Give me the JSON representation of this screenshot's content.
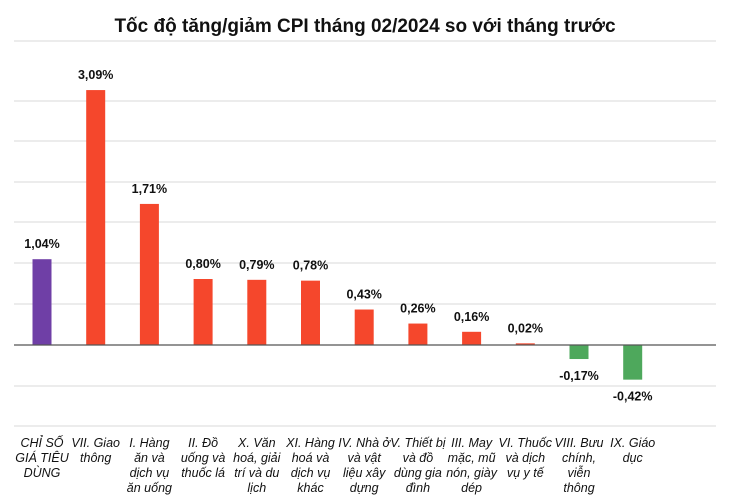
{
  "chart_data": {
    "type": "bar",
    "title": "Tốc độ tăng/giảm CPI tháng 02/2024 so với tháng trước",
    "categories": [
      "CHỈ SỐ GIÁ TIÊU DÙNG",
      "VII. Giao thông",
      "I. Hàng ăn và dịch vụ ăn uống",
      "II. Đồ uống và thuốc lá",
      "X. Văn hoá, giải trí và du lịch",
      "XI. Hàng hoá và dịch vụ khác",
      "IV. Nhà ở và vật liệu xây dựng",
      "V. Thiết bị và đồ dùng gia đình",
      "III. May mặc, mũ nón, giày dép",
      "VI. Thuốc và dịch vụ y tế",
      "VIII. Bưu chính, viễn thông",
      "IX. Giáo dục"
    ],
    "values": [
      1.04,
      3.09,
      1.71,
      0.8,
      0.79,
      0.78,
      0.43,
      0.26,
      0.16,
      0.02,
      -0.17,
      -0.42
    ],
    "value_labels": [
      "1,04%",
      "3,09%",
      "1,71%",
      "0,80%",
      "0,79%",
      "0,78%",
      "0,43%",
      "0,26%",
      "0,16%",
      "0,02%",
      "-0,17%",
      "-0,42%"
    ],
    "colors": {
      "overall": "#6f3fa6",
      "increase": "#f5472c",
      "decrease": "#4ea85c",
      "gridline": "#d9d9d9",
      "zero_line": "#555555"
    },
    "ylim": [
      -0.8,
      3.4
    ],
    "grid": true,
    "legend": "none"
  }
}
